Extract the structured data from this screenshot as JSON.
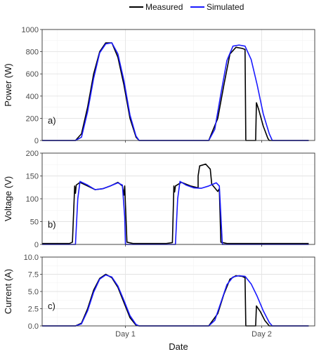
{
  "chart_data": {
    "type": "line",
    "xlabel": "Date",
    "x_tick_labels": [
      "Day 1",
      "Day 2"
    ],
    "grid": true,
    "legend": {
      "placement": "top",
      "entries": [
        {
          "name": "Measured",
          "color": "#000000"
        },
        {
          "name": "Simulated",
          "color": "#1a1aff"
        }
      ]
    },
    "panels": [
      {
        "tag": "a)",
        "ylabel": "Power (W)",
        "ylim": [
          0,
          1000
        ],
        "yticks": [
          0,
          200,
          400,
          600,
          800,
          1000
        ],
        "series": [
          {
            "name": "Measured",
            "color": "#000000",
            "points": [
              [
                0.0,
                0
              ],
              [
                0.22,
                0
              ],
              [
                0.26,
                60
              ],
              [
                0.3,
                300
              ],
              [
                0.34,
                600
              ],
              [
                0.38,
                800
              ],
              [
                0.42,
                880
              ],
              [
                0.46,
                880
              ],
              [
                0.5,
                750
              ],
              [
                0.54,
                500
              ],
              [
                0.58,
                200
              ],
              [
                0.62,
                30
              ],
              [
                0.64,
                0
              ],
              [
                1.0,
                0
              ],
              [
                1.1,
                0
              ],
              [
                1.16,
                200
              ],
              [
                1.2,
                500
              ],
              [
                1.24,
                780
              ],
              [
                1.28,
                840
              ],
              [
                1.32,
                830
              ],
              [
                1.34,
                820
              ],
              [
                1.345,
                0
              ],
              [
                1.41,
                0
              ],
              [
                1.415,
                340
              ],
              [
                1.43,
                280
              ],
              [
                1.46,
                130
              ],
              [
                1.49,
                20
              ],
              [
                1.5,
                0
              ],
              [
                1.76,
                0
              ]
            ]
          },
          {
            "name": "Simulated",
            "color": "#1a1aff",
            "points": [
              [
                0.0,
                0
              ],
              [
                0.22,
                0
              ],
              [
                0.26,
                30
              ],
              [
                0.3,
                260
              ],
              [
                0.34,
                560
              ],
              [
                0.38,
                790
              ],
              [
                0.42,
                870
              ],
              [
                0.46,
                880
              ],
              [
                0.5,
                780
              ],
              [
                0.54,
                540
              ],
              [
                0.58,
                230
              ],
              [
                0.62,
                40
              ],
              [
                0.64,
                0
              ],
              [
                1.0,
                0
              ],
              [
                1.1,
                0
              ],
              [
                1.14,
                100
              ],
              [
                1.18,
                420
              ],
              [
                1.22,
                720
              ],
              [
                1.26,
                850
              ],
              [
                1.3,
                860
              ],
              [
                1.34,
                850
              ],
              [
                1.38,
                730
              ],
              [
                1.42,
                500
              ],
              [
                1.46,
                240
              ],
              [
                1.5,
                60
              ],
              [
                1.52,
                0
              ],
              [
                1.76,
                0
              ]
            ]
          }
        ]
      },
      {
        "tag": "b)",
        "ylabel": "Voltage (V)",
        "ylim": [
          0,
          200
        ],
        "yticks": [
          0,
          50,
          100,
          150,
          200
        ],
        "series": [
          {
            "name": "Measured",
            "color": "#000000",
            "points": [
              [
                0.0,
                2
              ],
              [
                0.18,
                2
              ],
              [
                0.2,
                5
              ],
              [
                0.215,
                128
              ],
              [
                0.22,
                112
              ],
              [
                0.225,
                130
              ],
              [
                0.25,
                136
              ],
              [
                0.3,
                128
              ],
              [
                0.35,
                120
              ],
              [
                0.4,
                122
              ],
              [
                0.45,
                128
              ],
              [
                0.5,
                136
              ],
              [
                0.53,
                128
              ],
              [
                0.54,
                108
              ],
              [
                0.545,
                128
              ],
              [
                0.56,
                5
              ],
              [
                0.6,
                2
              ],
              [
                0.82,
                2
              ],
              [
                0.86,
                4
              ],
              [
                0.87,
                128
              ],
              [
                0.875,
                115
              ],
              [
                0.88,
                128
              ],
              [
                0.92,
                136
              ],
              [
                0.98,
                128
              ],
              [
                1.03,
                124
              ],
              [
                1.03,
                150
              ],
              [
                1.04,
                172
              ],
              [
                1.08,
                176
              ],
              [
                1.11,
                165
              ],
              [
                1.12,
                132
              ],
              [
                1.16,
                116
              ],
              [
                1.17,
                122
              ],
              [
                1.18,
                5
              ],
              [
                1.22,
                2
              ],
              [
                1.76,
                2
              ]
            ]
          },
          {
            "name": "Simulated",
            "color": "#1a1aff",
            "points": [
              [
                0.0,
                0
              ],
              [
                0.22,
                0
              ],
              [
                0.235,
                100
              ],
              [
                0.25,
                138
              ],
              [
                0.3,
                130
              ],
              [
                0.35,
                120
              ],
              [
                0.4,
                122
              ],
              [
                0.45,
                128
              ],
              [
                0.5,
                135
              ],
              [
                0.53,
                130
              ],
              [
                0.545,
                60
              ],
              [
                0.55,
                0
              ],
              [
                0.88,
                0
              ],
              [
                0.895,
                100
              ],
              [
                0.91,
                138
              ],
              [
                0.95,
                130
              ],
              [
                1.0,
                124
              ],
              [
                1.05,
                123
              ],
              [
                1.1,
                128
              ],
              [
                1.15,
                135
              ],
              [
                1.17,
                128
              ],
              [
                1.19,
                0
              ],
              [
                1.76,
                0
              ]
            ]
          }
        ]
      },
      {
        "tag": "c)",
        "ylabel": "Current (A)",
        "ylim": [
          0,
          10
        ],
        "yticks": [
          "0.0",
          "2.5",
          "5.0",
          "7.5",
          "10.0"
        ],
        "series": [
          {
            "name": "Measured",
            "color": "#000000",
            "points": [
              [
                0.0,
                0
              ],
              [
                0.22,
                0
              ],
              [
                0.26,
                0.4
              ],
              [
                0.3,
                2.5
              ],
              [
                0.34,
                5.2
              ],
              [
                0.38,
                6.9
              ],
              [
                0.42,
                7.5
              ],
              [
                0.46,
                7.0
              ],
              [
                0.5,
                5.6
              ],
              [
                0.54,
                3.4
              ],
              [
                0.58,
                1.2
              ],
              [
                0.62,
                0.1
              ],
              [
                0.64,
                0
              ],
              [
                1.0,
                0
              ],
              [
                1.1,
                0
              ],
              [
                1.16,
                1.8
              ],
              [
                1.2,
                4.6
              ],
              [
                1.24,
                6.8
              ],
              [
                1.28,
                7.3
              ],
              [
                1.32,
                7.2
              ],
              [
                1.34,
                7.0
              ],
              [
                1.345,
                0
              ],
              [
                1.41,
                0
              ],
              [
                1.415,
                2.9
              ],
              [
                1.44,
                2.1
              ],
              [
                1.47,
                0.8
              ],
              [
                1.5,
                0
              ],
              [
                1.76,
                0
              ]
            ]
          },
          {
            "name": "Simulated",
            "color": "#1a1aff",
            "points": [
              [
                0.0,
                0
              ],
              [
                0.22,
                0
              ],
              [
                0.26,
                0.3
              ],
              [
                0.3,
                2.2
              ],
              [
                0.34,
                4.9
              ],
              [
                0.38,
                6.8
              ],
              [
                0.42,
                7.4
              ],
              [
                0.46,
                7.1
              ],
              [
                0.5,
                5.8
              ],
              [
                0.54,
                3.7
              ],
              [
                0.58,
                1.5
              ],
              [
                0.62,
                0.2
              ],
              [
                0.64,
                0
              ],
              [
                1.0,
                0
              ],
              [
                1.1,
                0
              ],
              [
                1.14,
                0.8
              ],
              [
                1.18,
                3.4
              ],
              [
                1.22,
                6.0
              ],
              [
                1.26,
                7.1
              ],
              [
                1.3,
                7.3
              ],
              [
                1.34,
                7.2
              ],
              [
                1.38,
                6.1
              ],
              [
                1.42,
                4.3
              ],
              [
                1.46,
                2.2
              ],
              [
                1.5,
                0.5
              ],
              [
                1.52,
                0
              ],
              [
                1.76,
                0
              ]
            ]
          }
        ]
      }
    ]
  }
}
